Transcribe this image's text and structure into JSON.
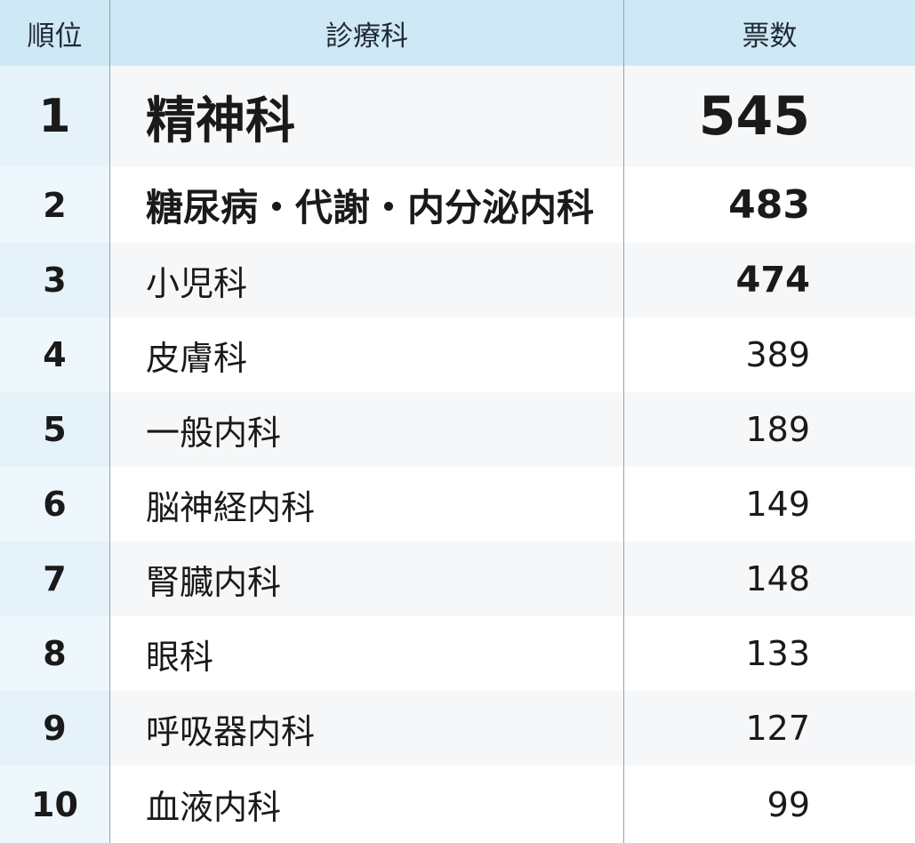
{
  "header": {
    "rank": "順位",
    "dept": "診療科",
    "votes": "票数"
  },
  "rows": [
    {
      "rank": "1",
      "dept": "精神科",
      "votes": "545"
    },
    {
      "rank": "2",
      "dept": "糖尿病・代謝・内分泌内科",
      "votes": "483"
    },
    {
      "rank": "3",
      "dept": "小児科",
      "votes": "474"
    },
    {
      "rank": "4",
      "dept": "皮膚科",
      "votes": "389"
    },
    {
      "rank": "5",
      "dept": "一般内科",
      "votes": "189"
    },
    {
      "rank": "6",
      "dept": "脳神経内科",
      "votes": "149"
    },
    {
      "rank": "7",
      "dept": "腎臓内科",
      "votes": "148"
    },
    {
      "rank": "8",
      "dept": "眼科",
      "votes": "133"
    },
    {
      "rank": "9",
      "dept": "呼吸器内科",
      "votes": "127"
    },
    {
      "rank": "10",
      "dept": "血液内科",
      "votes": "99"
    }
  ],
  "colors": {
    "header_bg": "#cfe8f5",
    "rank_col_bg": "#e5f2f9",
    "stripe_bg": "#f6f7f8"
  }
}
